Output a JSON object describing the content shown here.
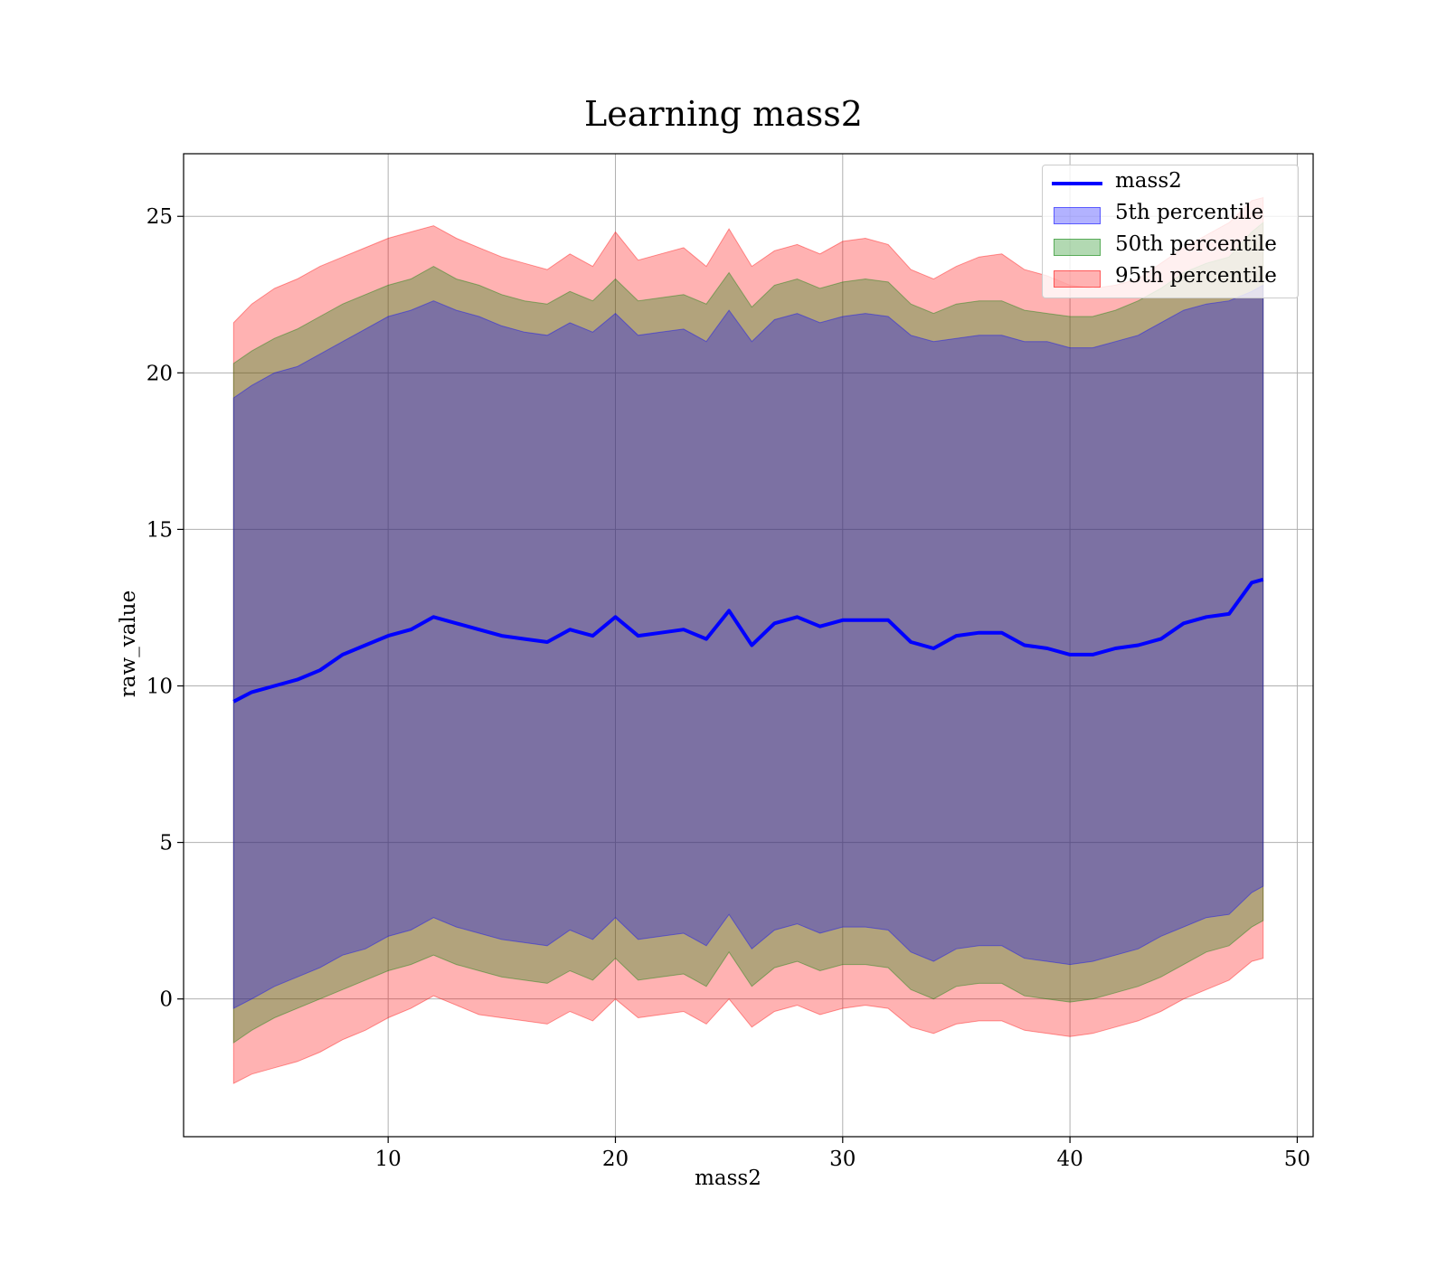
{
  "chart_data": {
    "type": "area",
    "title": "Learning mass2",
    "xlabel": "mass2",
    "ylabel": "raw_value",
    "xlim": [
      1,
      50.7
    ],
    "ylim": [
      -4.4,
      27
    ],
    "xticks": [
      10,
      20,
      30,
      40,
      50
    ],
    "yticks": [
      0,
      5,
      10,
      15,
      20,
      25
    ],
    "grid": true,
    "legend_position": "top-right",
    "colors": {
      "line": "#0000ff",
      "p5": "#0000ff",
      "p50": "#008000",
      "p95": "#ff0000",
      "grid": "#b0b0b0"
    },
    "x": [
      3.2,
      4,
      5,
      6,
      7,
      8,
      9,
      10,
      11,
      12,
      13,
      14,
      15,
      16,
      17,
      18,
      19,
      20,
      21,
      22,
      23,
      24,
      25,
      26,
      27,
      28,
      29,
      30,
      31,
      32,
      33,
      34,
      35,
      36,
      37,
      38,
      39,
      40,
      41,
      42,
      43,
      44,
      45,
      46,
      47,
      48,
      48.5
    ],
    "series": [
      {
        "name": "mass2",
        "kind": "line",
        "values": [
          9.5,
          9.8,
          10.0,
          10.2,
          10.5,
          11.0,
          11.3,
          11.6,
          11.8,
          12.2,
          12.0,
          11.8,
          11.6,
          11.5,
          11.4,
          11.8,
          11.6,
          12.2,
          11.6,
          11.7,
          11.8,
          11.5,
          12.4,
          11.3,
          12.0,
          12.2,
          11.9,
          12.1,
          12.1,
          12.1,
          11.4,
          11.2,
          11.6,
          11.7,
          11.7,
          11.3,
          11.2,
          11.0,
          11.0,
          11.2,
          11.3,
          11.5,
          12.0,
          12.2,
          12.3,
          13.3,
          13.4
        ]
      },
      {
        "name": "5th percentile",
        "kind": "band",
        "upper": [
          19.2,
          19.6,
          20.0,
          20.2,
          20.6,
          21.0,
          21.4,
          21.8,
          22.0,
          22.3,
          22.0,
          21.8,
          21.5,
          21.3,
          21.2,
          21.6,
          21.3,
          21.9,
          21.2,
          21.3,
          21.4,
          21.0,
          22.0,
          21.0,
          21.7,
          21.9,
          21.6,
          21.8,
          21.9,
          21.8,
          21.2,
          21.0,
          21.1,
          21.2,
          21.2,
          21.0,
          21.0,
          20.8,
          20.8,
          21.0,
          21.2,
          21.6,
          22.0,
          22.2,
          22.3,
          22.6,
          22.8
        ],
        "lower": [
          -0.3,
          0.0,
          0.4,
          0.7,
          1.0,
          1.4,
          1.6,
          2.0,
          2.2,
          2.6,
          2.3,
          2.1,
          1.9,
          1.8,
          1.7,
          2.2,
          1.9,
          2.6,
          1.9,
          2.0,
          2.1,
          1.7,
          2.7,
          1.6,
          2.2,
          2.4,
          2.1,
          2.3,
          2.3,
          2.2,
          1.5,
          1.2,
          1.6,
          1.7,
          1.7,
          1.3,
          1.2,
          1.1,
          1.2,
          1.4,
          1.6,
          2.0,
          2.3,
          2.6,
          2.7,
          3.4,
          3.6
        ]
      },
      {
        "name": "50th percentile",
        "kind": "band",
        "upper": [
          20.3,
          20.7,
          21.1,
          21.4,
          21.8,
          22.2,
          22.5,
          22.8,
          23.0,
          23.4,
          23.0,
          22.8,
          22.5,
          22.3,
          22.2,
          22.6,
          22.3,
          23.0,
          22.3,
          22.4,
          22.5,
          22.2,
          23.2,
          22.1,
          22.8,
          23.0,
          22.7,
          22.9,
          23.0,
          22.9,
          22.2,
          21.9,
          22.2,
          22.3,
          22.3,
          22.0,
          21.9,
          21.8,
          21.8,
          22.0,
          22.3,
          22.7,
          23.2,
          23.5,
          23.7,
          24.5,
          24.8
        ],
        "lower": [
          -1.4,
          -1.0,
          -0.6,
          -0.3,
          0.0,
          0.3,
          0.6,
          0.9,
          1.1,
          1.4,
          1.1,
          0.9,
          0.7,
          0.6,
          0.5,
          0.9,
          0.6,
          1.3,
          0.6,
          0.7,
          0.8,
          0.4,
          1.5,
          0.4,
          1.0,
          1.2,
          0.9,
          1.1,
          1.1,
          1.0,
          0.3,
          0.0,
          0.4,
          0.5,
          0.5,
          0.1,
          0.0,
          -0.1,
          0.0,
          0.2,
          0.4,
          0.7,
          1.1,
          1.5,
          1.7,
          2.3,
          2.5
        ]
      },
      {
        "name": "95th percentile",
        "kind": "band",
        "upper": [
          21.6,
          22.2,
          22.7,
          23.0,
          23.4,
          23.7,
          24.0,
          24.3,
          24.5,
          24.7,
          24.3,
          24.0,
          23.7,
          23.5,
          23.3,
          23.8,
          23.4,
          24.5,
          23.6,
          23.8,
          24.0,
          23.4,
          24.6,
          23.4,
          23.9,
          24.1,
          23.8,
          24.2,
          24.3,
          24.1,
          23.3,
          23.0,
          23.4,
          23.7,
          23.8,
          23.3,
          23.1,
          22.8,
          22.7,
          22.8,
          23.0,
          23.5,
          24.0,
          24.4,
          24.8,
          25.5,
          25.6
        ],
        "lower": [
          -2.7,
          -2.4,
          -2.2,
          -2.0,
          -1.7,
          -1.3,
          -1.0,
          -0.6,
          -0.3,
          0.1,
          -0.2,
          -0.5,
          -0.6,
          -0.7,
          -0.8,
          -0.4,
          -0.7,
          0.0,
          -0.6,
          -0.5,
          -0.4,
          -0.8,
          0.0,
          -0.9,
          -0.4,
          -0.2,
          -0.5,
          -0.3,
          -0.2,
          -0.3,
          -0.9,
          -1.1,
          -0.8,
          -0.7,
          -0.7,
          -1.0,
          -1.1,
          -1.2,
          -1.1,
          -0.9,
          -0.7,
          -0.4,
          0.0,
          0.3,
          0.6,
          1.2,
          1.3
        ]
      }
    ]
  }
}
